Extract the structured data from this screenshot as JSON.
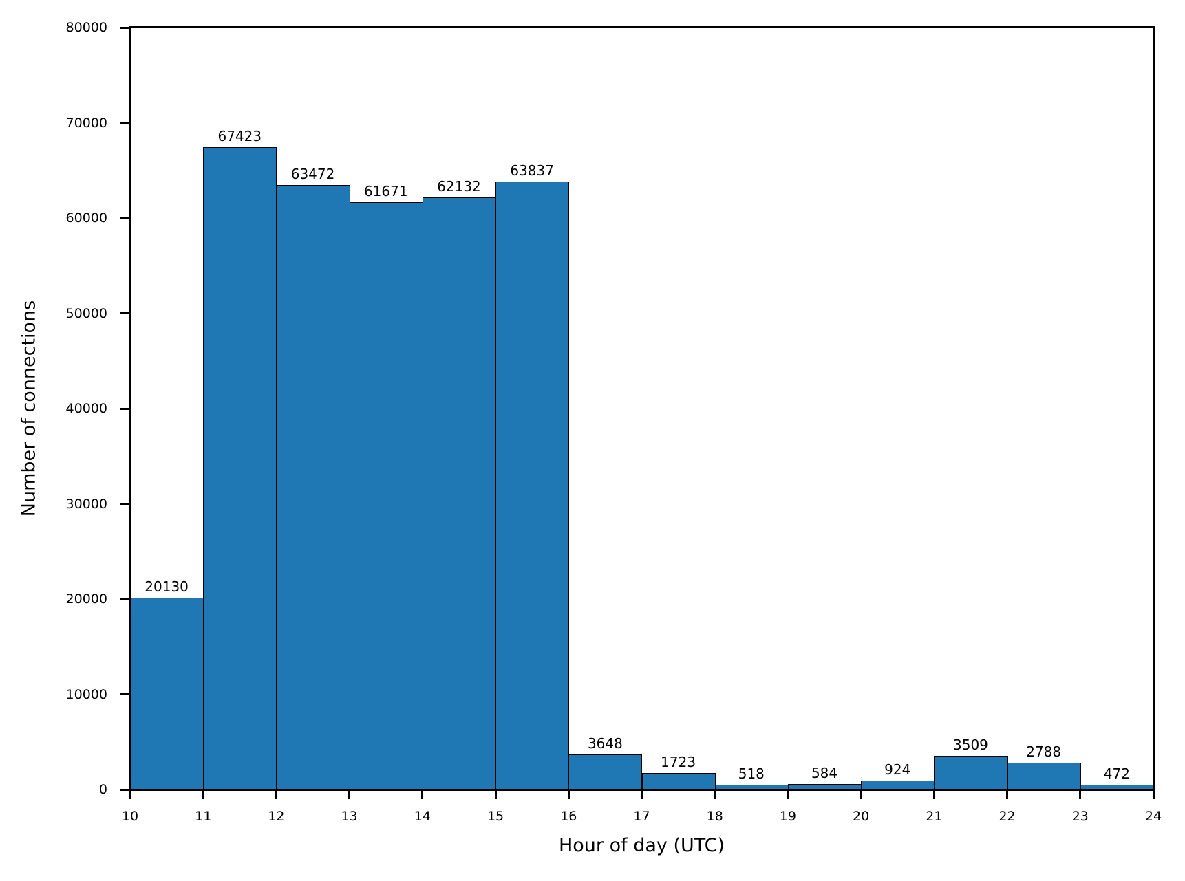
{
  "chart_data": {
    "type": "bar",
    "subtype": "histogram",
    "title": "",
    "xlabel": "Hour of day (UTC)",
    "ylabel": "Number of connections",
    "bin_edges": [
      10,
      11,
      12,
      13,
      14,
      15,
      16,
      17,
      18,
      19,
      20,
      21,
      22,
      23,
      24
    ],
    "categories": [
      "10-11",
      "11-12",
      "12-13",
      "13-14",
      "14-15",
      "15-16",
      "16-17",
      "17-18",
      "18-19",
      "19-20",
      "20-21",
      "21-22",
      "22-23",
      "23-24"
    ],
    "values": [
      20130,
      67423,
      63472,
      61671,
      62132,
      63837,
      3648,
      1723,
      518,
      584,
      924,
      3509,
      2788,
      472
    ],
    "bar_labels": [
      "20130",
      "67423",
      "63472",
      "61671",
      "62132",
      "63837",
      "3648",
      "1723",
      "518",
      "584",
      "924",
      "3509",
      "2788",
      "472"
    ],
    "xlim": [
      10,
      24
    ],
    "ylim": [
      0,
      80000
    ],
    "xticks": [
      "10",
      "11",
      "12",
      "13",
      "14",
      "15",
      "16",
      "17",
      "18",
      "19",
      "20",
      "21",
      "22",
      "23",
      "24"
    ],
    "yticks": [
      "0",
      "10000",
      "20000",
      "30000",
      "40000",
      "50000",
      "60000",
      "70000",
      "80000"
    ],
    "grid": false,
    "legend": null,
    "colors": {
      "bar_fill": "#1f77b4",
      "bar_edge": "#000000"
    }
  }
}
